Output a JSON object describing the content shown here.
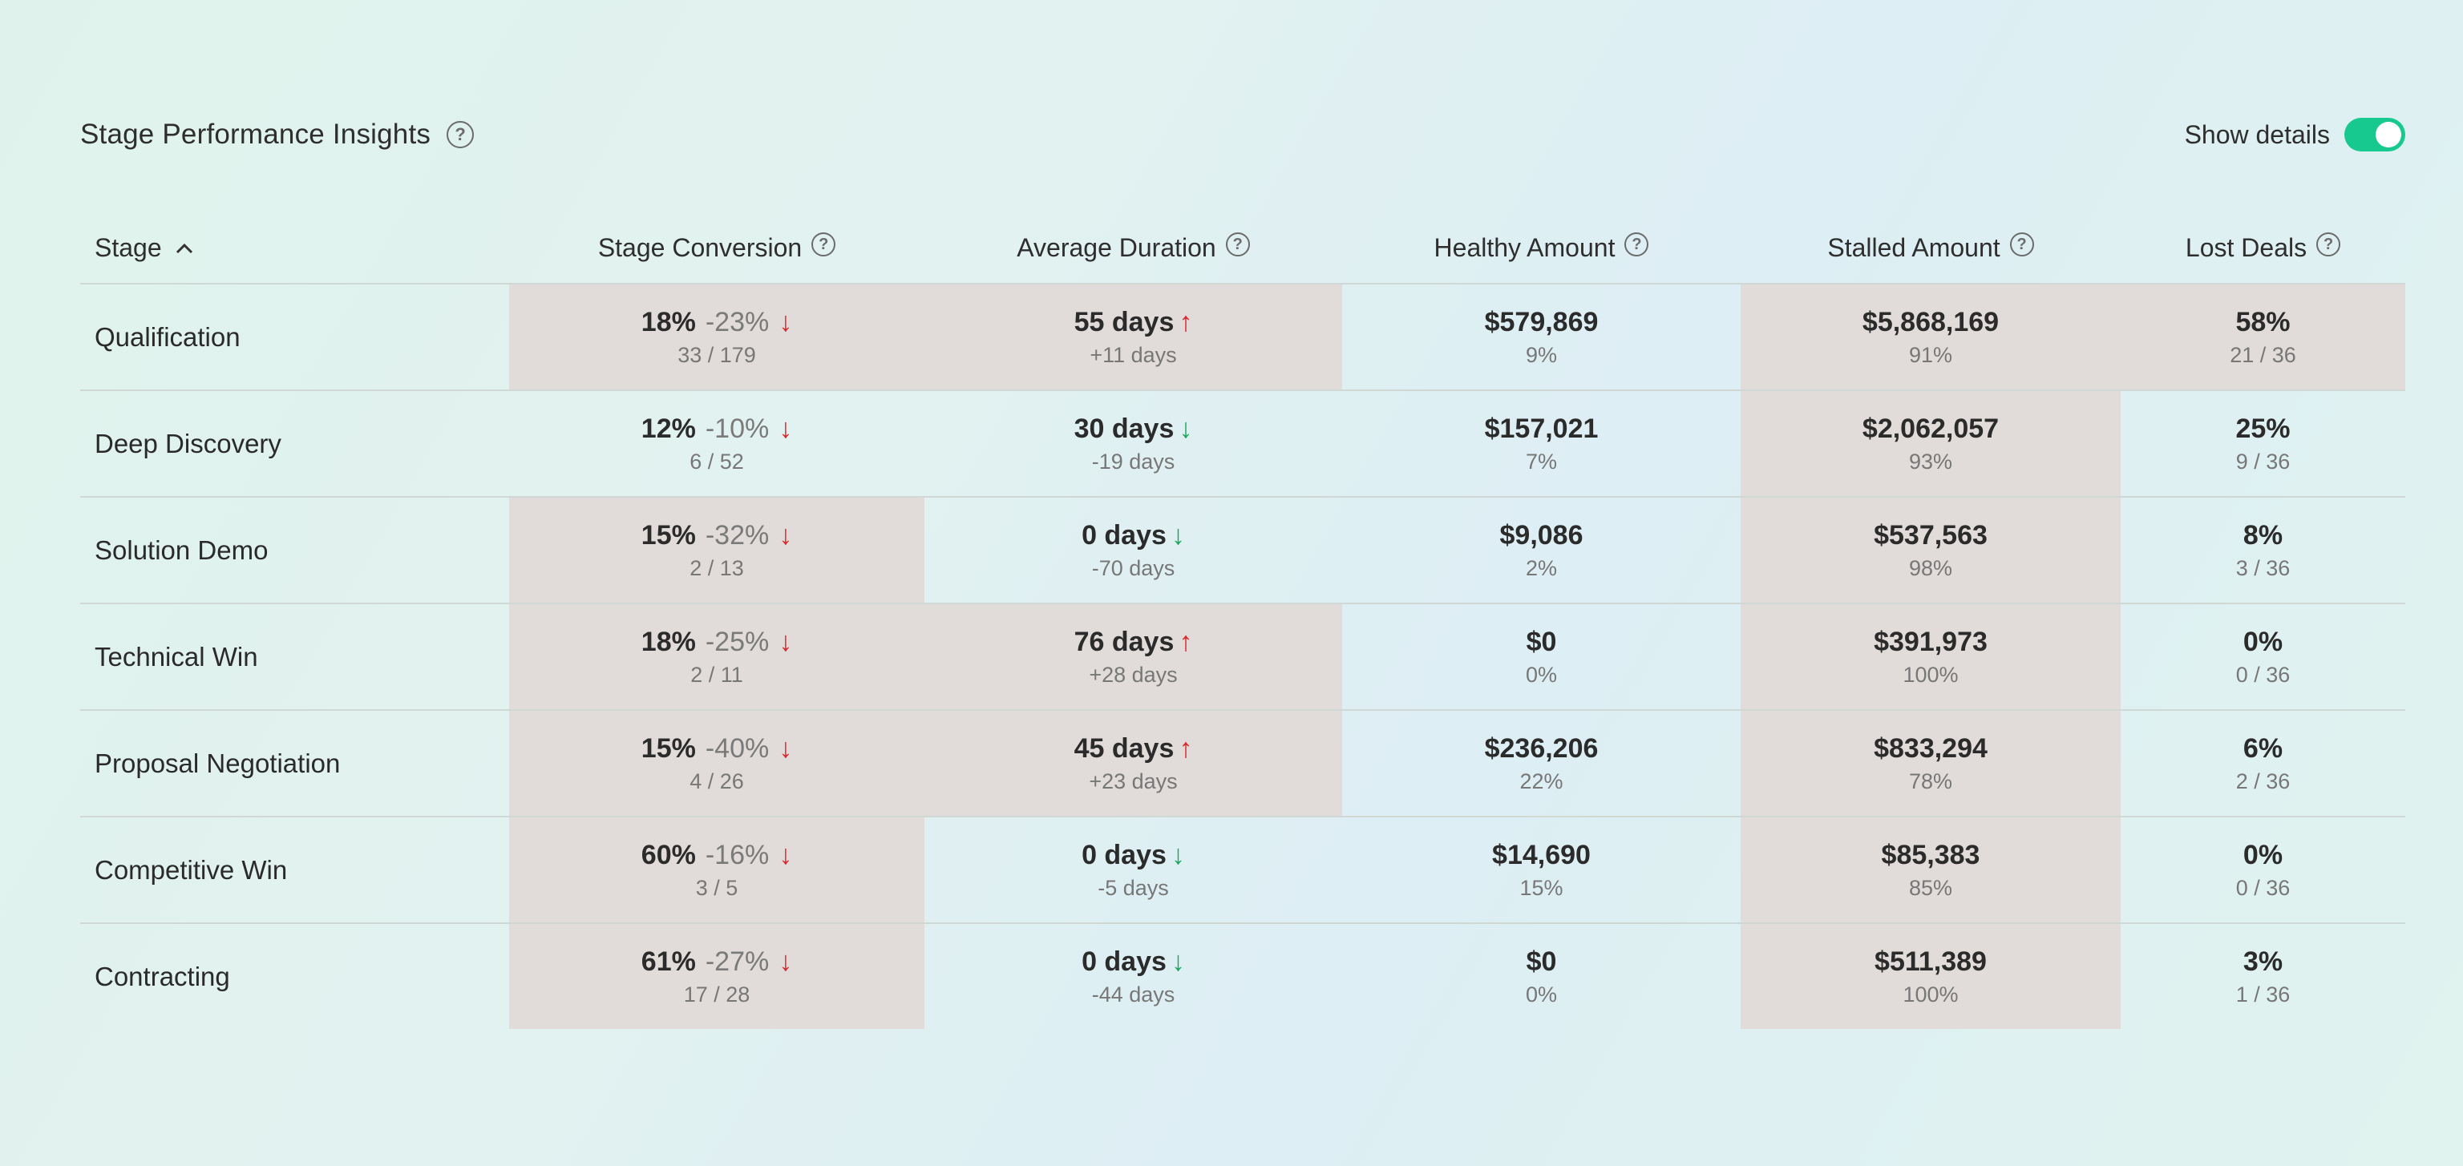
{
  "header": {
    "title": "Stage Performance Insights",
    "help_glyph": "?",
    "toggle_label": "Show details",
    "toggle_on": true,
    "toggle_color": "#18c98f"
  },
  "columns": {
    "stage": "Stage",
    "conversion": "Stage Conversion",
    "duration": "Average Duration",
    "healthy": "Healthy Amount",
    "stalled": "Stalled Amount",
    "lost": "Lost Deals",
    "sort_glyph": "^"
  },
  "colors": {
    "highlight": "#e1dcd9",
    "arrow_up_bad": "#d9262b",
    "arrow_down_good": "#18a85a"
  },
  "rows": [
    {
      "stage": "Qualification",
      "conversion": {
        "value": "18%",
        "delta": "-23%",
        "arrow": "↓",
        "sub": "33 / 179",
        "highlight": true
      },
      "duration": {
        "value": "55 days",
        "arrow": "↑",
        "sub": "+11 days",
        "highlight": true
      },
      "healthy": {
        "value": "$579,869",
        "sub": "9%",
        "highlight": false
      },
      "stalled": {
        "value": "$5,868,169",
        "sub": "91%",
        "highlight": true
      },
      "lost": {
        "value": "58%",
        "sub": "21 / 36",
        "highlight": true
      }
    },
    {
      "stage": "Deep Discovery",
      "conversion": {
        "value": "12%",
        "delta": "-10%",
        "arrow": "↓",
        "sub": "6 / 52",
        "highlight": false
      },
      "duration": {
        "value": "30 days",
        "arrow": "↓",
        "sub": "-19 days",
        "highlight": false
      },
      "healthy": {
        "value": "$157,021",
        "sub": "7%",
        "highlight": false
      },
      "stalled": {
        "value": "$2,062,057",
        "sub": "93%",
        "highlight": true
      },
      "lost": {
        "value": "25%",
        "sub": "9 / 36",
        "highlight": false
      }
    },
    {
      "stage": "Solution Demo",
      "conversion": {
        "value": "15%",
        "delta": "-32%",
        "arrow": "↓",
        "sub": "2 / 13",
        "highlight": true
      },
      "duration": {
        "value": "0 days",
        "arrow": "↓",
        "sub": "-70 days",
        "highlight": false
      },
      "healthy": {
        "value": "$9,086",
        "sub": "2%",
        "highlight": false
      },
      "stalled": {
        "value": "$537,563",
        "sub": "98%",
        "highlight": true
      },
      "lost": {
        "value": "8%",
        "sub": "3 / 36",
        "highlight": false
      }
    },
    {
      "stage": "Technical Win",
      "conversion": {
        "value": "18%",
        "delta": "-25%",
        "arrow": "↓",
        "sub": "2 / 11",
        "highlight": true
      },
      "duration": {
        "value": "76 days",
        "arrow": "↑",
        "sub": "+28 days",
        "highlight": true
      },
      "healthy": {
        "value": "$0",
        "sub": "0%",
        "highlight": false
      },
      "stalled": {
        "value": "$391,973",
        "sub": "100%",
        "highlight": true
      },
      "lost": {
        "value": "0%",
        "sub": "0 / 36",
        "highlight": false
      }
    },
    {
      "stage": "Proposal Negotiation",
      "conversion": {
        "value": "15%",
        "delta": "-40%",
        "arrow": "↓",
        "sub": "4 / 26",
        "highlight": true
      },
      "duration": {
        "value": "45 days",
        "arrow": "↑",
        "sub": "+23 days",
        "highlight": true
      },
      "healthy": {
        "value": "$236,206",
        "sub": "22%",
        "highlight": false
      },
      "stalled": {
        "value": "$833,294",
        "sub": "78%",
        "highlight": true
      },
      "lost": {
        "value": "6%",
        "sub": "2 / 36",
        "highlight": false
      }
    },
    {
      "stage": "Competitive Win",
      "conversion": {
        "value": "60%",
        "delta": "-16%",
        "arrow": "↓",
        "sub": "3 / 5",
        "highlight": true
      },
      "duration": {
        "value": "0 days",
        "arrow": "↓",
        "sub": "-5 days",
        "highlight": false
      },
      "healthy": {
        "value": "$14,690",
        "sub": "15%",
        "highlight": false
      },
      "stalled": {
        "value": "$85,383",
        "sub": "85%",
        "highlight": true
      },
      "lost": {
        "value": "0%",
        "sub": "0 / 36",
        "highlight": false
      }
    },
    {
      "stage": "Contracting",
      "conversion": {
        "value": "61%",
        "delta": "-27%",
        "arrow": "↓",
        "sub": "17 / 28",
        "highlight": true
      },
      "duration": {
        "value": "0 days",
        "arrow": "↓",
        "sub": "-44 days",
        "highlight": false
      },
      "healthy": {
        "value": "$0",
        "sub": "0%",
        "highlight": false
      },
      "stalled": {
        "value": "$511,389",
        "sub": "100%",
        "highlight": true
      },
      "lost": {
        "value": "3%",
        "sub": "1 / 36",
        "highlight": false
      }
    }
  ]
}
